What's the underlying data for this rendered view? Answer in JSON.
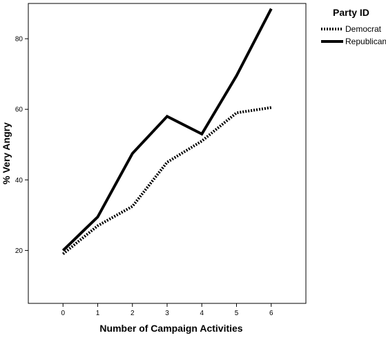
{
  "chart_data": {
    "type": "line",
    "title": "",
    "xlabel": "Number of Campaign Activities",
    "ylabel": "% Very Angry",
    "x": [
      0,
      1,
      2,
      3,
      4,
      5,
      6
    ],
    "xlim": [
      -1,
      7
    ],
    "ylim": [
      5,
      90
    ],
    "x_ticks": [
      "0",
      "1",
      "2",
      "3",
      "4",
      "5",
      "6"
    ],
    "y_ticks": [
      "20",
      "40",
      "60",
      "80"
    ],
    "y_tick_values": [
      20,
      40,
      60,
      80
    ],
    "grid": false,
    "legend": {
      "title": "Party ID",
      "placement": "right"
    },
    "series": [
      {
        "name": "Democrat",
        "style": "dotted",
        "color": "#000000",
        "values": [
          19,
          27,
          32.5,
          45,
          51,
          59,
          60.5
        ]
      },
      {
        "name": "Republican",
        "style": "solid",
        "color": "#000000",
        "values": [
          20,
          29.5,
          47.5,
          58,
          53,
          69.5,
          88.5
        ]
      }
    ]
  }
}
